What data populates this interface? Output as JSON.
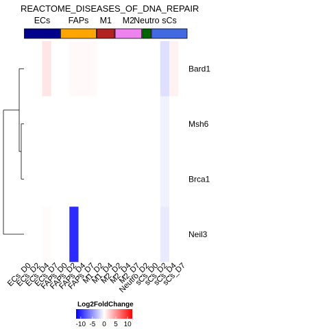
{
  "chart_data": {
    "type": "heatmap",
    "title": "REACTOME_DISEASES_OF_DNA_REPAIR",
    "columns": [
      "ECs_D0",
      "ECs_D2",
      "ECs_D4",
      "ECs_D7",
      "FAPs_D0",
      "FAPs_D2",
      "FAPs_D4",
      "FAPs_D7",
      "M1_D2",
      "M1_D4",
      "M2_D2",
      "M2_D4",
      "M2_D7",
      "Neutro_D2",
      "sCs_D0",
      "sCs_D2",
      "sCs_D4",
      "sCs_D7"
    ],
    "rows": [
      "Bard1",
      "Msh6",
      "Brca1",
      "Neil3"
    ],
    "column_groups": [
      {
        "name": "ECs",
        "color": "#00008B",
        "count": 4
      },
      {
        "name": "FAPs",
        "color": "#FFA500",
        "count": 4
      },
      {
        "name": "M1",
        "color": "#B22222",
        "count": 2
      },
      {
        "name": "M2",
        "color": "#EE82EE",
        "count": 3
      },
      {
        "name": "Neutro",
        "color": "#006400",
        "count": 1
      },
      {
        "name": "sCs",
        "color": "#4169E1",
        "count": 4
      }
    ],
    "values": [
      [
        0,
        0,
        1.2,
        0,
        0,
        0.3,
        0.3,
        0.3,
        0,
        0,
        0,
        0,
        0,
        0,
        0,
        -1.5,
        0.6,
        0
      ],
      [
        0,
        0,
        0,
        0,
        0,
        0,
        0,
        0,
        0,
        0,
        0,
        0,
        0,
        0,
        0,
        -0.6,
        0,
        0
      ],
      [
        0,
        0,
        0,
        0,
        0,
        0,
        0,
        0,
        0,
        0,
        0,
        0,
        0,
        0,
        0,
        -0.6,
        0,
        0
      ],
      [
        0,
        0,
        0.2,
        0,
        0,
        -10,
        0,
        0,
        0,
        0,
        0,
        0,
        0,
        0,
        0,
        -1.0,
        0,
        0
      ]
    ],
    "color_scale": {
      "title": "Log2FoldChange",
      "min": -12,
      "max": 12,
      "ticks": [
        -10,
        -5,
        0,
        5,
        10
      ],
      "low_color": "#0000FF",
      "mid_color": "#FFFFFF",
      "high_color": "#FF0000"
    }
  }
}
